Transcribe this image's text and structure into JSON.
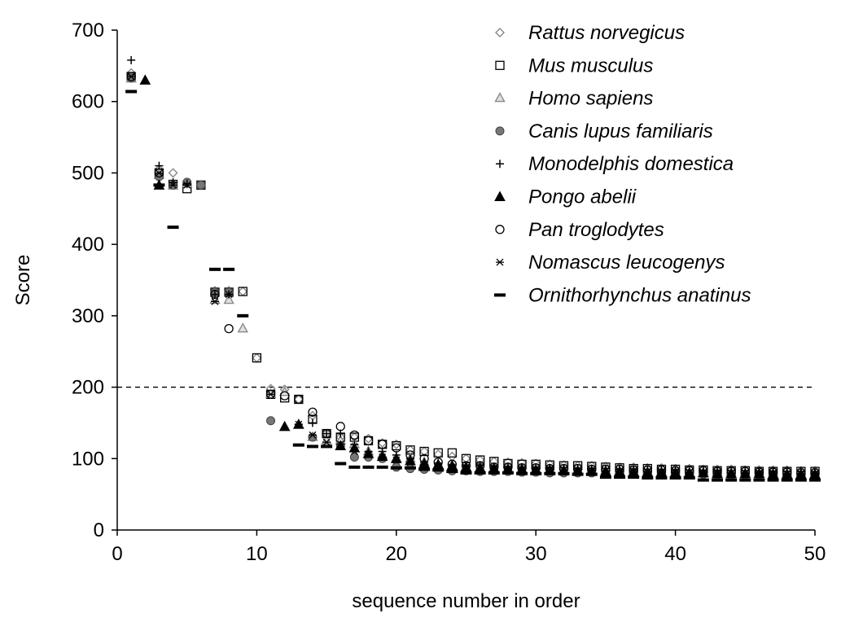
{
  "chart_data": {
    "type": "scatter",
    "xlabel": "sequence number in order",
    "ylabel": "Score",
    "xlim": [
      0,
      50
    ],
    "ylim": [
      0,
      700
    ],
    "xticks": [
      0,
      10,
      20,
      30,
      40,
      50
    ],
    "yticks": [
      0,
      100,
      200,
      300,
      400,
      500,
      600,
      700
    ],
    "threshold_line": {
      "y": 200,
      "style": "dashed"
    },
    "legend_position": "top-right",
    "series": [
      {
        "name": "Rattus norvegicus",
        "marker": "diamond",
        "color": "#888888",
        "x": [
          1,
          3,
          4,
          5,
          6,
          7,
          8,
          9,
          10,
          11,
          12,
          13,
          14,
          15,
          16,
          17,
          18,
          19,
          20,
          21,
          22,
          23,
          24,
          25,
          26,
          27,
          28,
          29,
          30,
          31,
          32,
          33,
          34,
          35,
          36,
          37,
          38,
          39,
          40,
          41,
          42,
          43,
          44,
          45,
          46,
          47,
          48,
          49,
          50
        ],
        "y": [
          640,
          505,
          500,
          485,
          483,
          335,
          335,
          334,
          241,
          198,
          197,
          183,
          160,
          135,
          130,
          130,
          128,
          122,
          120,
          112,
          110,
          106,
          103,
          100,
          98,
          96,
          95,
          94,
          93,
          92,
          91,
          90,
          90,
          89,
          88,
          88,
          87,
          87,
          86,
          86,
          85,
          85,
          85,
          84,
          84,
          84,
          84,
          83,
          83
        ]
      },
      {
        "name": "Mus musculus",
        "marker": "square",
        "color": "#000000",
        "x": [
          1,
          3,
          4,
          5,
          6,
          7,
          8,
          9,
          10,
          11,
          12,
          13,
          14,
          15,
          16,
          17,
          18,
          19,
          20,
          21,
          22,
          23,
          24,
          25,
          26,
          27,
          28,
          29,
          30,
          31,
          32,
          33,
          34,
          35,
          36,
          37,
          38,
          39,
          40,
          41,
          42,
          43,
          44,
          45,
          46,
          47,
          48,
          49,
          50
        ],
        "y": [
          635,
          500,
          484,
          478,
          483,
          333,
          333,
          334,
          241,
          190,
          185,
          183,
          155,
          135,
          130,
          130,
          125,
          120,
          118,
          112,
          110,
          108,
          108,
          100,
          98,
          96,
          93,
          92,
          92,
          91,
          90,
          90,
          89,
          88,
          87,
          86,
          86,
          85,
          85,
          84,
          84,
          83,
          83,
          83,
          82,
          82,
          82,
          82,
          82
        ]
      },
      {
        "name": "Homo sapiens",
        "marker": "triangle-open",
        "color": "#888888",
        "x": [
          1,
          3,
          4,
          5,
          7,
          8,
          9,
          11,
          12,
          13,
          14,
          15,
          16,
          17,
          18,
          19,
          20,
          21,
          22,
          23,
          24,
          25,
          26,
          27,
          28,
          29,
          30,
          31,
          32,
          33,
          34,
          35,
          36,
          37,
          38,
          39,
          40,
          41,
          42,
          43,
          44,
          45,
          46,
          47,
          48,
          49,
          50
        ],
        "y": [
          632,
          497,
          482,
          485,
          322,
          322,
          282,
          190,
          193,
          147,
          130,
          125,
          125,
          120,
          110,
          105,
          100,
          100,
          95,
          90,
          90,
          88,
          87,
          86,
          85,
          85,
          84,
          84,
          84,
          83,
          83,
          83,
          82,
          82,
          81,
          81,
          81,
          80,
          80,
          80,
          80,
          79,
          79,
          79,
          79,
          78,
          78
        ]
      },
      {
        "name": "Canis lupus familiaris",
        "marker": "circle-filled",
        "color": "#777777",
        "x": [
          1,
          3,
          4,
          5,
          6,
          7,
          8,
          11,
          14,
          16,
          17,
          18,
          19,
          20,
          21,
          22,
          23,
          24,
          25,
          26,
          27,
          28,
          29,
          30,
          31,
          32,
          33,
          34,
          35,
          36,
          37,
          38,
          39,
          40,
          41,
          42,
          43,
          44,
          45,
          46,
          47,
          48,
          49,
          50
        ],
        "y": [
          633,
          495,
          483,
          487,
          483,
          333,
          333,
          153,
          130,
          118,
          102,
          102,
          100,
          88,
          86,
          85,
          84,
          83,
          83,
          82,
          82,
          82,
          81,
          81,
          80,
          80,
          80,
          80,
          79,
          79,
          79,
          79,
          78,
          78,
          78,
          78,
          77,
          77,
          77,
          77,
          77,
          76,
          76,
          76
        ]
      },
      {
        "name": "Monodelphis domestica",
        "marker": "plus",
        "color": "#000000",
        "x": [
          1,
          3,
          4,
          5,
          7,
          8,
          13,
          14,
          15,
          16,
          17,
          18,
          19,
          20,
          21,
          22,
          23,
          24,
          25,
          26,
          27,
          28,
          29,
          30,
          31,
          32,
          33,
          34,
          35,
          36,
          37,
          38,
          39,
          40,
          41,
          42,
          43,
          44,
          45,
          46,
          47,
          48,
          49,
          50
        ],
        "y": [
          658,
          510,
          487,
          485,
          330,
          330,
          148,
          150,
          135,
          135,
          120,
          110,
          110,
          105,
          100,
          95,
          92,
          90,
          90,
          90,
          88,
          88,
          88,
          87,
          87,
          87,
          86,
          86,
          86,
          85,
          85,
          85,
          84,
          84,
          84,
          83,
          83,
          83,
          83,
          82,
          82,
          82,
          82,
          81
        ]
      },
      {
        "name": "Pongo abelii",
        "marker": "triangle-filled",
        "color": "#000000",
        "x": [
          2,
          3,
          12,
          13,
          16,
          17,
          18,
          19,
          20,
          21,
          22,
          23,
          24,
          25,
          26,
          27,
          28,
          29,
          30,
          31,
          32,
          33,
          34,
          35,
          36,
          37,
          38,
          39,
          40,
          41,
          42,
          43,
          44,
          45,
          46,
          47,
          48,
          49,
          50
        ],
        "y": [
          630,
          483,
          145,
          148,
          118,
          115,
          107,
          103,
          100,
          97,
          93,
          92,
          90,
          88,
          87,
          86,
          85,
          85,
          84,
          84,
          83,
          83,
          82,
          82,
          82,
          81,
          81,
          81,
          80,
          80,
          80,
          79,
          79,
          79,
          79,
          78,
          78,
          78,
          78
        ]
      },
      {
        "name": "Pan troglodytes",
        "marker": "circle-open",
        "color": "#000000",
        "x": [
          1,
          3,
          7,
          8,
          11,
          12,
          13,
          14,
          15,
          16,
          17,
          18,
          19,
          20,
          21,
          22,
          23,
          24,
          25,
          26,
          27,
          28,
          29,
          30,
          31,
          32,
          33,
          34,
          35,
          36,
          37,
          38,
          39,
          40,
          41,
          42,
          43,
          44,
          45,
          46,
          47,
          48,
          49,
          50
        ],
        "y": [
          635,
          500,
          330,
          282,
          190,
          188,
          183,
          165,
          135,
          145,
          133,
          125,
          120,
          115,
          105,
          100,
          95,
          92,
          90,
          90,
          88,
          88,
          87,
          87,
          86,
          86,
          86,
          85,
          85,
          85,
          84,
          84,
          84,
          83,
          83,
          83,
          82,
          82,
          82,
          81,
          81,
          81,
          80,
          80
        ]
      },
      {
        "name": "Nomascus leucogenys",
        "marker": "asterisk",
        "color": "#000000",
        "x": [
          1,
          3,
          4,
          5,
          7,
          8,
          11,
          13,
          14,
          15,
          16,
          17,
          18,
          19,
          20,
          21,
          22,
          23,
          24,
          25,
          26,
          27,
          28,
          29,
          30,
          31,
          32,
          33,
          34,
          35,
          36,
          37,
          38,
          39,
          40,
          41,
          42,
          43,
          44,
          45,
          46,
          47,
          48,
          49,
          50
        ],
        "y": [
          635,
          500,
          483,
          483,
          320,
          330,
          190,
          148,
          133,
          123,
          120,
          110,
          105,
          102,
          98,
          95,
          92,
          90,
          88,
          88,
          87,
          86,
          86,
          85,
          85,
          85,
          84,
          84,
          84,
          83,
          83,
          83,
          82,
          82,
          82,
          81,
          81,
          81,
          80,
          80,
          80,
          80,
          79,
          79,
          79
        ]
      },
      {
        "name": "Ornithorhynchus anatinus",
        "marker": "dash",
        "color": "#000000",
        "x": [
          1,
          3,
          4,
          7,
          8,
          9,
          13,
          14,
          15,
          16,
          17,
          18,
          19,
          20,
          21,
          22,
          23,
          24,
          25,
          26,
          27,
          28,
          29,
          30,
          31,
          32,
          33,
          34,
          35,
          36,
          37,
          38,
          39,
          40,
          41,
          42,
          43,
          44,
          45,
          46,
          47,
          48,
          49,
          50
        ],
        "y": [
          614,
          483,
          424,
          365,
          365,
          300,
          119,
          117,
          117,
          93,
          88,
          88,
          88,
          87,
          87,
          85,
          84,
          82,
          80,
          80,
          80,
          80,
          79,
          79,
          79,
          79,
          78,
          78,
          74,
          74,
          74,
          73,
          73,
          73,
          73,
          70,
          70,
          70,
          70,
          70,
          70,
          70,
          70,
          70
        ]
      }
    ]
  }
}
